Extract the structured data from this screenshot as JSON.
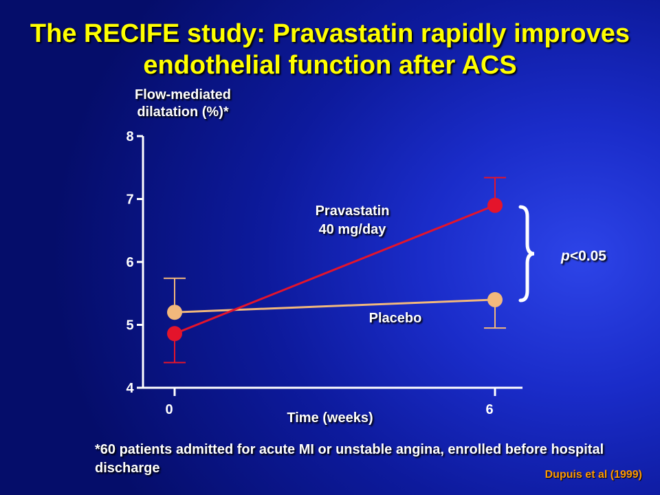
{
  "title": "The RECIFE study: Pravastatin rapidly improves endothelial function after ACS",
  "footnote": "*60 patients admitted for acute MI or unstable angina, enrolled before hospital discharge",
  "citation": "Dupuis et al (1999)",
  "significance": {
    "p_label": "p",
    "p_value": "<0.05"
  },
  "colors": {
    "pravastatin": "#e4142b",
    "placebo": "#f2b87c",
    "background": "#0d1a9c",
    "title": "#ffff00",
    "citation": "#ff9900"
  },
  "chart_data": {
    "type": "line",
    "title": "The RECIFE study: Pravastatin rapidly improves endothelial function after ACS",
    "xlabel": "Time (weeks)",
    "ylabel": "Flow-mediated dilatation (%)*",
    "x": [
      0,
      6
    ],
    "x_ticks": [
      0,
      6
    ],
    "y_ticks": [
      4,
      5,
      6,
      7,
      8
    ],
    "ylim": [
      4,
      8
    ],
    "grid": false,
    "series": [
      {
        "key": "pravastatin",
        "name_lines": [
          "Pravastatin",
          "40 mg/day"
        ],
        "values": [
          4.86,
          6.9
        ],
        "error_low": [
          4.4,
          null
        ],
        "error_high": [
          null,
          7.34
        ]
      },
      {
        "key": "placebo",
        "name": "Placebo",
        "values": [
          5.2,
          5.4
        ],
        "error_low": [
          null,
          4.95
        ],
        "error_high": [
          5.74,
          null
        ]
      }
    ]
  }
}
